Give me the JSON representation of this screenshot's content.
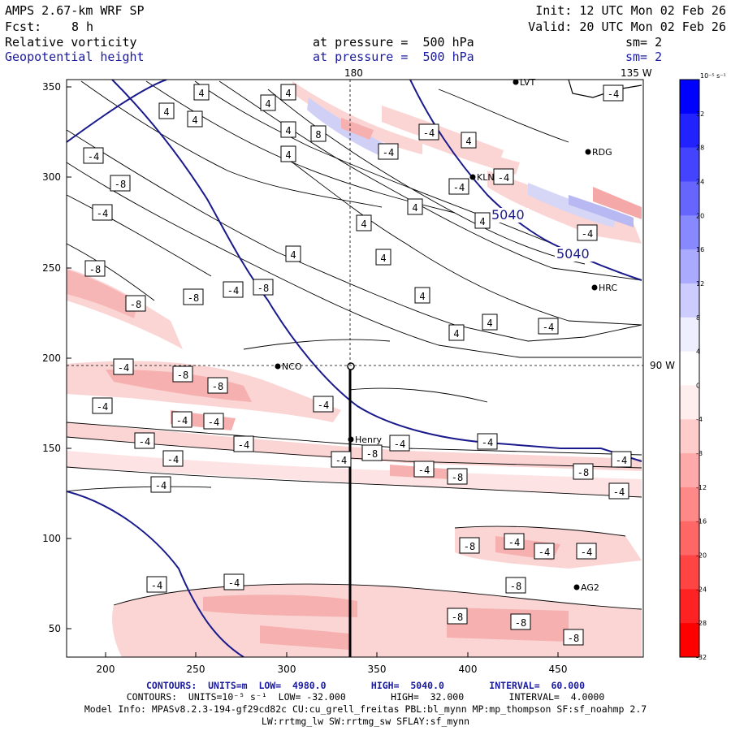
{
  "header": {
    "model": "AMPS 2.67-km WRF SP",
    "fcst_label": "Fcst:",
    "fcst_value": "8 h",
    "init": "Init: 12 UTC Mon 02 Feb 26",
    "valid": "Valid: 20 UTC Mon 02 Feb 26",
    "field1_name": "Relative vorticity",
    "field1_level": "at pressure =  500 hPa",
    "field1_sm": "sm= 2",
    "field2_name": "Geopotential height",
    "field2_level": "at pressure =  500 hPa",
    "field2_sm": "sm= 2"
  },
  "axes": {
    "x_ticks": [
      "200",
      "250",
      "300",
      "350",
      "400",
      "450"
    ],
    "y_ticks": [
      "350",
      "300",
      "250",
      "200",
      "150",
      "100",
      "50"
    ],
    "meridian_180": "180",
    "meridian_135w": "135 W",
    "meridian_90w": "90 W"
  },
  "stations": [
    {
      "name": "LVT"
    },
    {
      "name": "RDG"
    },
    {
      "name": "KLN"
    },
    {
      "name": "HRC"
    },
    {
      "name": "NCO"
    },
    {
      "name": "Henry"
    },
    {
      "name": "AG2"
    }
  ],
  "height_labels": [
    "5040",
    "5040"
  ],
  "vort_labels": [
    "4",
    "4",
    "4",
    "4",
    "4",
    "4",
    "8",
    "4",
    "-4",
    "4",
    "4",
    "-4",
    "4",
    "4",
    "4",
    "-4",
    "-4",
    "4",
    "4",
    "4",
    "4",
    "-4",
    "-4",
    "-4",
    "-4",
    "-8",
    "-4",
    "-8",
    "-8",
    "-8",
    "-4",
    "-8",
    "-4",
    "-8",
    "-8",
    "-4",
    "-4",
    "-4",
    "-4",
    "-4",
    "-4",
    "-4",
    "-4",
    "-4",
    "-8",
    "-4",
    "-4",
    "-4",
    "-4",
    "-8",
    "-8",
    "-4",
    "-4",
    "-4",
    "-8",
    "-4",
    "-8",
    "-8",
    "-8",
    "-8",
    "-4",
    "-4"
  ],
  "colorbar": {
    "unit": "10⁻⁵ s⁻¹",
    "labels": [
      "32",
      "28",
      "24",
      "20",
      "16",
      "12",
      "8",
      "4",
      "0",
      "-4",
      "-8",
      "-12",
      "-16",
      "-20",
      "-24",
      "-28",
      "-32"
    ],
    "colors": [
      "#0000ff",
      "#2222ff",
      "#4444ff",
      "#6666ff",
      "#8888ff",
      "#aaaaff",
      "#ccccff",
      "#eeeeff",
      "#ffffff",
      "#ffeeee",
      "#ffcccc",
      "#ffaaaa",
      "#ff8888",
      "#ff6666",
      "#ff4444",
      "#ff2222",
      "#ff0000"
    ]
  },
  "footer": {
    "contours_height": "CONTOURS:  UNITS=m  LOW=  4980.0        HIGH=  5040.0        INTERVAL=  60.000",
    "contours_vort": "CONTOURS:  UNITS=10⁻⁵ s⁻¹  LOW= -32.000        HIGH=  32.000        INTERVAL=  4.0000",
    "model_info": "Model Info: MPASv8.2.3-194-gf29cd82c CU:cu_grell_freitas PBL:bl_mynn MP:mp_thompson SF:sf_noahmp 2.7",
    "model_info2": "LW:rrtmg_lw SW:rrtmg_sw SFLAY:sf_mynn"
  }
}
